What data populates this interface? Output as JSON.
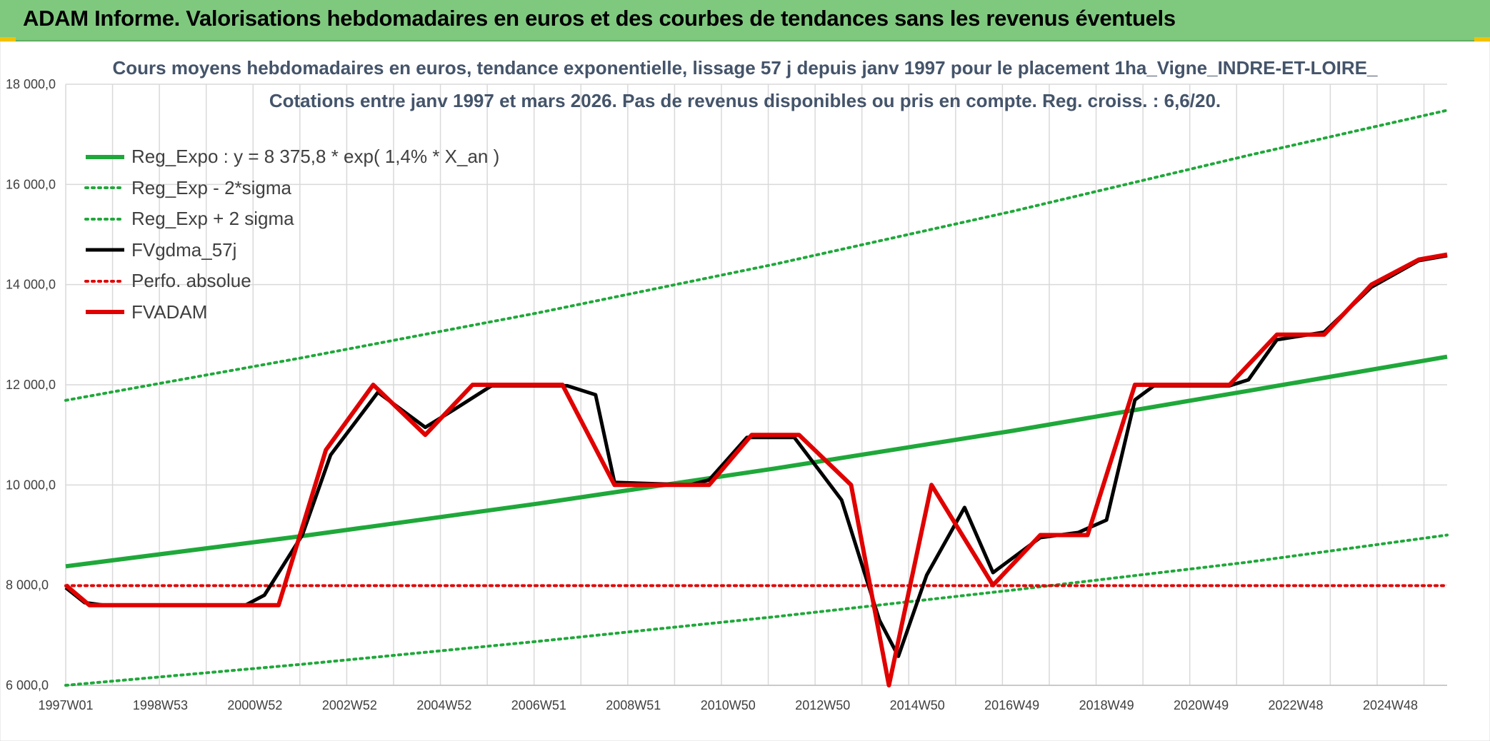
{
  "header": {
    "title": "ADAM Informe. Valorisations hebdomadaires en euros et des courbes de tendances sans les revenus éventuels"
  },
  "colors": {
    "green": "#1fa83a",
    "red": "#e00000",
    "black": "#000000",
    "header": "#7fc97f",
    "grid": "#d9d9d9"
  },
  "chart_data": {
    "type": "line",
    "title": [
      "Cours moyens hebdomadaires en euros, tendance exponentielle, lissage 57 j depuis janv 1997 pour le placement 1ha_Vigne_INDRE-ET-LOIRE_",
      "Cotations entre janv 1997 et mars 2026. Pas de revenus disponibles ou pris en compte. Reg. croiss. : 6,6/20."
    ],
    "xlabel": "",
    "ylabel": "",
    "ylim": [
      6000,
      18000
    ],
    "yticks": [
      "6 000,0",
      "8 000,0",
      "10 000,0",
      "12 000,0",
      "14 000,0",
      "16 000,0",
      "18 000,0"
    ],
    "xlim": [
      1997.0,
      2026.2
    ],
    "xticks": [
      {
        "label": "1997W01",
        "x": 1997.0
      },
      {
        "label": "1998W53",
        "x": 1999.0
      },
      {
        "label": "2000W52",
        "x": 2001.0
      },
      {
        "label": "2002W52",
        "x": 2003.0
      },
      {
        "label": "2004W52",
        "x": 2005.0
      },
      {
        "label": "2006W51",
        "x": 2007.0
      },
      {
        "label": "2008W51",
        "x": 2009.0
      },
      {
        "label": "2010W50",
        "x": 2011.0
      },
      {
        "label": "2012W50",
        "x": 2013.0
      },
      {
        "label": "2014W50",
        "x": 2015.0
      },
      {
        "label": "2016W49",
        "x": 2017.0
      },
      {
        "label": "2018W49",
        "x": 2019.0
      },
      {
        "label": "2020W49",
        "x": 2021.0
      },
      {
        "label": "2022W48",
        "x": 2023.0
      },
      {
        "label": "2024W48",
        "x": 2025.0
      }
    ],
    "grid": true,
    "legend_position": "top-left",
    "series": [
      {
        "name": "Reg_Expo : y = 8 375,8 * exp( 1,4% *  X_an )",
        "style": "solid-thick",
        "color": "#1fa83a",
        "x": [
          1997.0,
          2002.0,
          2007.0,
          2012.0,
          2017.0,
          2022.0,
          2026.2
        ],
        "values": [
          8376,
          8980,
          9630,
          10330,
          11080,
          11880,
          12560
        ]
      },
      {
        "name": "Reg_Exp - 2*sigma",
        "style": "dotted",
        "color": "#1fa83a",
        "x": [
          1997.0,
          2002.0,
          2007.0,
          2012.0,
          2017.0,
          2022.0,
          2026.2
        ],
        "values": [
          6000,
          6420,
          6880,
          7370,
          7900,
          8460,
          9000
        ]
      },
      {
        "name": "Reg_Exp + 2 sigma",
        "style": "dotted",
        "color": "#1fa83a",
        "x": [
          1997.0,
          2002.0,
          2007.0,
          2012.0,
          2017.0,
          2022.0,
          2026.2
        ],
        "values": [
          11690,
          12540,
          13440,
          14410,
          15460,
          16580,
          17480
        ]
      },
      {
        "name": "FVgdma_57j",
        "style": "solid",
        "color": "#000000",
        "x": [
          1997.0,
          1997.4,
          1997.8,
          2000.8,
          2001.2,
          2002.0,
          2002.6,
          2003.6,
          2004.6,
          2005.2,
          2006.0,
          2007.6,
          2008.2,
          2008.6,
          2010.2,
          2010.6,
          2011.4,
          2012.4,
          2013.4,
          2014.2,
          2014.6,
          2015.2,
          2016.0,
          2016.6,
          2017.6,
          2018.4,
          2019.0,
          2019.6,
          2020.0,
          2021.6,
          2022.0,
          2022.6,
          2023.6,
          2024.6,
          2025.6,
          2026.2
        ],
        "values": [
          7950,
          7650,
          7600,
          7600,
          7800,
          9000,
          10600,
          11850,
          11150,
          11500,
          11980,
          11980,
          11800,
          10050,
          10000,
          10100,
          10950,
          10950,
          9700,
          7300,
          6580,
          8200,
          9550,
          8250,
          8950,
          9050,
          9300,
          11700,
          11980,
          11980,
          12100,
          12900,
          13050,
          13950,
          14480,
          14580
        ]
      },
      {
        "name": "Perfo. absolue",
        "style": "dotted",
        "color": "#e00000",
        "x": [
          1997.0,
          2026.2
        ],
        "values": [
          7990,
          7990
        ]
      },
      {
        "name": "FVADAM",
        "style": "solid-thick",
        "color": "#e00000",
        "x": [
          1997.0,
          1997.5,
          2001.5,
          2002.5,
          2003.5,
          2004.6,
          2005.6,
          2007.5,
          2008.6,
          2009.9,
          2010.6,
          2011.5,
          2012.5,
          2013.6,
          2014.4,
          2015.3,
          2016.6,
          2017.6,
          2018.6,
          2019.6,
          2021.6,
          2022.6,
          2023.6,
          2024.6,
          2025.6,
          2026.2
        ],
        "values": [
          8000,
          7600,
          7600,
          10700,
          12000,
          11000,
          12000,
          12000,
          10000,
          10000,
          10000,
          11000,
          11000,
          10000,
          6000,
          10000,
          8000,
          9000,
          9000,
          12000,
          12000,
          13000,
          13000,
          14000,
          14500,
          14600
        ]
      }
    ]
  }
}
